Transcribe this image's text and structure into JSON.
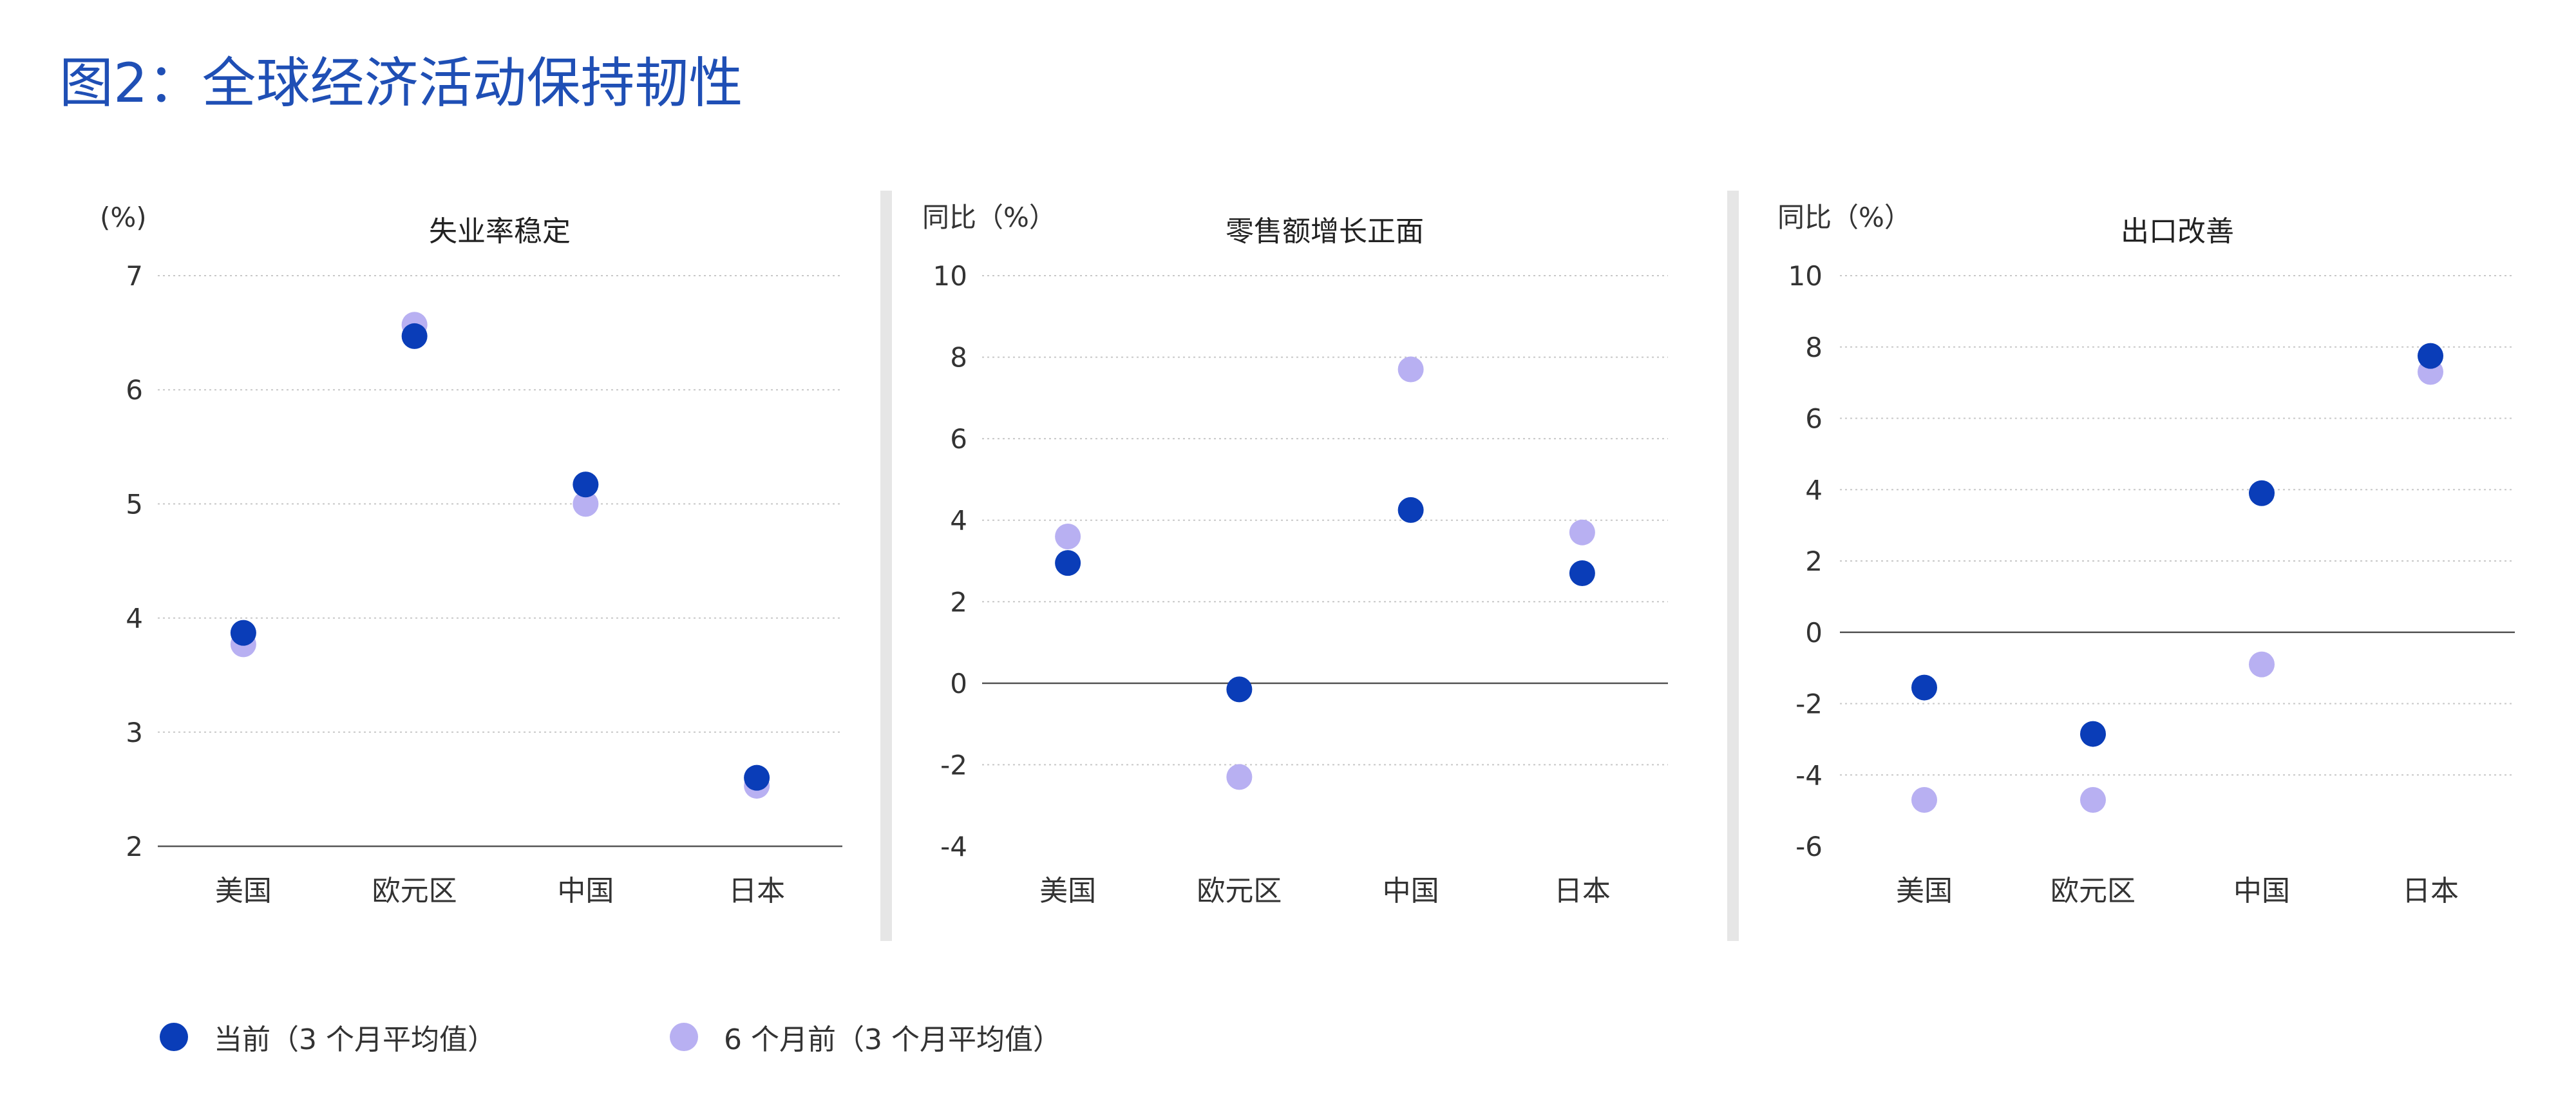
{
  "figure_title": "图2：全球经济活动保持韧性",
  "colors": {
    "current": "#0a3db8",
    "previous": "#b8b0f2",
    "title": "#1f4fb5"
  },
  "legend": [
    {
      "label": "当前（3 个月平均值）",
      "color": "#0a3db8"
    },
    {
      "label": "6 个月前（3 个月平均值）",
      "color": "#b8b0f2"
    }
  ],
  "chart_data": [
    {
      "type": "scatter",
      "title": "失业率稳定",
      "unit_label": "(%)",
      "categories": [
        "美国",
        "欧元区",
        "中国",
        "日本"
      ],
      "ylim": [
        2,
        7
      ],
      "yticks": [
        2,
        3,
        4,
        5,
        6,
        7
      ],
      "zero_line": false,
      "series": [
        {
          "name": "当前（3 个月平均值）",
          "values": [
            3.87,
            6.47,
            5.17,
            2.6
          ]
        },
        {
          "name": "6 个月前（3 个月平均值）",
          "values": [
            3.77,
            6.57,
            5.0,
            2.53
          ]
        }
      ]
    },
    {
      "type": "scatter",
      "title": "零售额增长正面",
      "unit_label": "同比（%）",
      "categories": [
        "美国",
        "欧元区",
        "中国",
        "日本"
      ],
      "ylim": [
        -4,
        10
      ],
      "yticks": [
        -4,
        -2,
        0,
        2,
        4,
        6,
        8,
        10
      ],
      "zero_line": true,
      "series": [
        {
          "name": "当前（3 个月平均值）",
          "values": [
            2.95,
            -0.15,
            4.25,
            2.7
          ]
        },
        {
          "name": "6 个月前（3 个月平均值）",
          "values": [
            3.6,
            -2.3,
            7.7,
            3.7
          ]
        }
      ]
    },
    {
      "type": "scatter",
      "title": "出口改善",
      "unit_label": "同比（%）",
      "categories": [
        "美国",
        "欧元区",
        "中国",
        "日本"
      ],
      "ylim": [
        -6,
        10
      ],
      "yticks": [
        -6,
        -4,
        -2,
        0,
        2,
        4,
        6,
        8,
        10
      ],
      "zero_line": true,
      "series": [
        {
          "name": "当前（3 个月平均值）",
          "values": [
            -1.55,
            -2.85,
            3.9,
            7.75
          ]
        },
        {
          "name": "6 个月前（3 个月平均值）",
          "values": [
            -4.7,
            -4.7,
            -0.9,
            7.3
          ]
        }
      ]
    }
  ]
}
